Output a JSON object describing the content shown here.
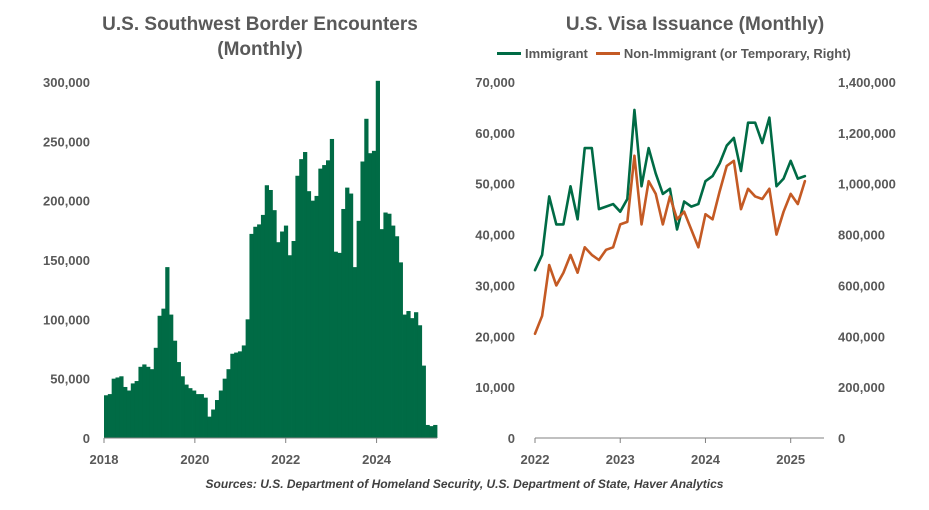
{
  "colors": {
    "green": "#006B45",
    "orange": "#C45A24",
    "axis": "#595959",
    "background": "#FFFFFF"
  },
  "source": "Sources: U.S. Department of Homeland Security, U.S. Department of State, Haver Analytics",
  "chart_data": [
    {
      "type": "bar",
      "title_line1": "U.S. Southwest Border Encounters",
      "title_line2": "(Monthly)",
      "xlabel": "",
      "ylabel": "",
      "x_start": 2018.0,
      "x_step": 0.08333,
      "xlim": [
        2018.0,
        2025.33
      ],
      "ylim": [
        0,
        300000
      ],
      "x_ticks": [
        2018,
        2020,
        2022,
        2024
      ],
      "y_ticks": [
        0,
        50000,
        100000,
        150000,
        200000,
        250000,
        300000
      ],
      "y_tick_labels": [
        "0",
        "50,000",
        "100,000",
        "150,000",
        "200,000",
        "250,000",
        "300,000"
      ],
      "values": [
        36000,
        37000,
        50000,
        51000,
        52000,
        43000,
        40000,
        46000,
        48000,
        60000,
        62000,
        60000,
        58000,
        76000,
        103000,
        109000,
        144000,
        104000,
        82000,
        64000,
        52000,
        45000,
        42000,
        40000,
        37000,
        37000,
        34000,
        18000,
        24000,
        32000,
        40000,
        50000,
        58000,
        71000,
        72000,
        73000,
        78000,
        100000,
        172000,
        178000,
        180000,
        188000,
        213000,
        209000,
        192000,
        165000,
        174000,
        179000,
        154000,
        166000,
        221000,
        235000,
        241000,
        208000,
        200000,
        204000,
        227000,
        230000,
        234000,
        252000,
        157000,
        156000,
        193000,
        211000,
        206000,
        144000,
        183000,
        233000,
        269000,
        240000,
        242000,
        301000,
        176000,
        190000,
        189000,
        179000,
        170000,
        148000,
        104000,
        107000,
        101000,
        106000,
        95000,
        61000,
        11000,
        10000,
        11000
      ]
    },
    {
      "type": "line",
      "title": "U.S. Visa Issuance (Monthly)",
      "xlabel": "",
      "ylabel": "",
      "x_start": 2022.0,
      "x_step": 0.08333,
      "xlim": [
        2022.0,
        2025.25
      ],
      "x_ticks": [
        2022,
        2023,
        2024,
        2025
      ],
      "y_left": {
        "lim": [
          0,
          70000
        ],
        "ticks": [
          0,
          10000,
          20000,
          30000,
          40000,
          50000,
          60000,
          70000
        ],
        "labels": [
          "0",
          "10,000",
          "20,000",
          "30,000",
          "40,000",
          "50,000",
          "60,000",
          "70,000"
        ]
      },
      "y_right": {
        "lim": [
          0,
          1400000
        ],
        "ticks": [
          0,
          200000,
          400000,
          600000,
          800000,
          1000000,
          1200000,
          1400000
        ],
        "labels": [
          "0",
          "200,000",
          "400,000",
          "600,000",
          "800,000",
          "1,000,000",
          "1,200,000",
          "1,400,000"
        ]
      },
      "series": [
        {
          "name": "Immigrant",
          "axis": "left",
          "values": [
            33000,
            36000,
            47500,
            42000,
            42000,
            49500,
            43000,
            57000,
            57000,
            45000,
            45500,
            46000,
            44500,
            47000,
            64500,
            49500,
            57000,
            52000,
            48000,
            49000,
            41000,
            46500,
            45500,
            46000,
            50500,
            51500,
            54000,
            57500,
            59000,
            52500,
            62000,
            62000,
            58000,
            63000,
            49500,
            51000,
            54500,
            51000,
            51500
          ]
        },
        {
          "name": "Non-Immigrant (or Temporary, Right)",
          "axis": "right",
          "values": [
            410000,
            480000,
            680000,
            600000,
            650000,
            720000,
            650000,
            750000,
            720000,
            700000,
            740000,
            750000,
            840000,
            850000,
            1110000,
            840000,
            1010000,
            960000,
            840000,
            950000,
            860000,
            890000,
            820000,
            750000,
            880000,
            860000,
            970000,
            1070000,
            1090000,
            900000,
            980000,
            950000,
            940000,
            980000,
            800000,
            890000,
            960000,
            920000,
            1010000
          ]
        }
      ]
    }
  ]
}
